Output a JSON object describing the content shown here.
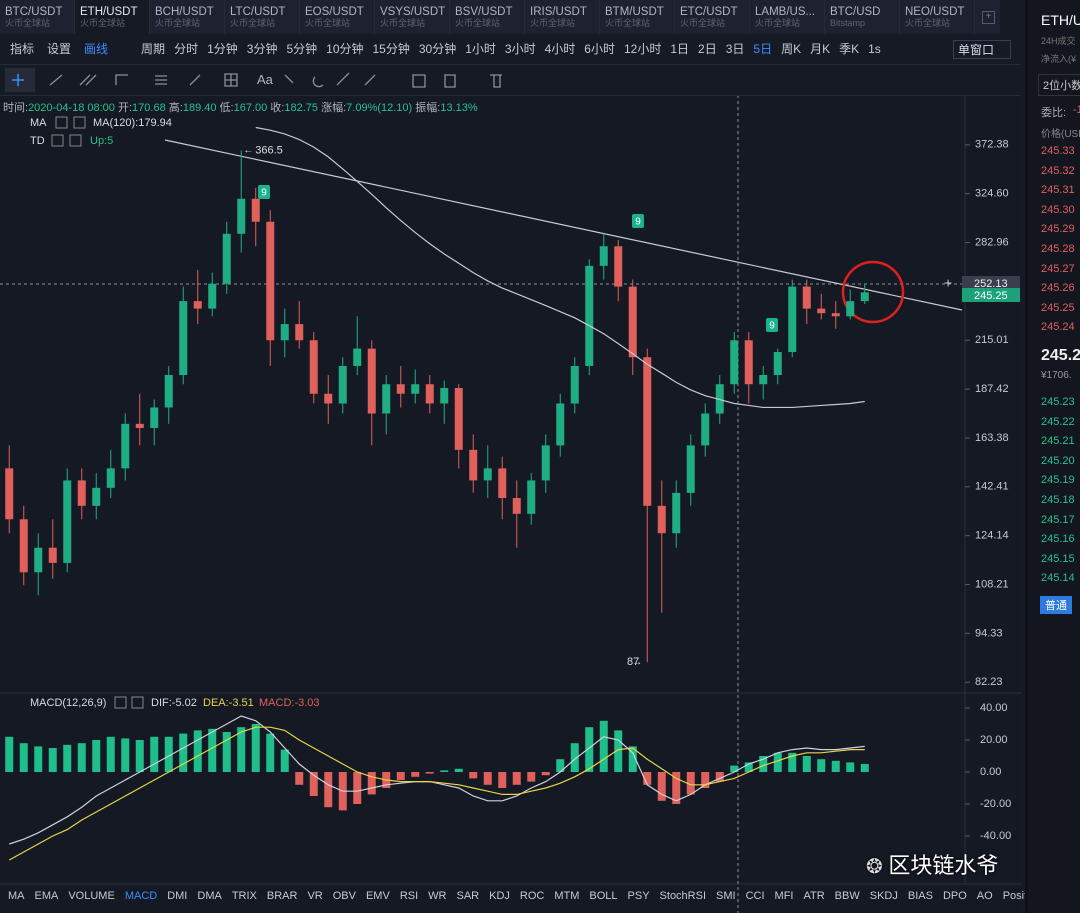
{
  "tabs": [
    {
      "symbol": "BTC/USDT",
      "exchange": "火币全球站"
    },
    {
      "symbol": "ETH/USDT",
      "exchange": "火币全球站"
    },
    {
      "symbol": "BCH/USDT",
      "exchange": "火币全球站"
    },
    {
      "symbol": "LTC/USDT",
      "exchange": "火币全球站"
    },
    {
      "symbol": "EOS/USDT",
      "exchange": "火币全球站"
    },
    {
      "symbol": "VSYS/USDT",
      "exchange": "火币全球站"
    },
    {
      "symbol": "BSV/USDT",
      "exchange": "火币全球站"
    },
    {
      "symbol": "IRIS/USDT",
      "exchange": "火币全球站"
    },
    {
      "symbol": "BTM/USDT",
      "exchange": "火币全球站"
    },
    {
      "symbol": "ETC/USDT",
      "exchange": "火币全球站"
    },
    {
      "symbol": "LAMB/US...",
      "exchange": "火币全球站"
    },
    {
      "symbol": "BTC/USD",
      "exchange": "Bitstamp"
    },
    {
      "symbol": "NEO/USDT",
      "exchange": "火币全球站"
    }
  ],
  "toolbar": {
    "left": [
      "指标",
      "设置",
      "画线"
    ],
    "periods": [
      "周期",
      "分时",
      "1分钟",
      "3分钟",
      "5分钟",
      "10分钟",
      "15分钟",
      "30分钟",
      "1小时",
      "3小时",
      "4小时",
      "6小时",
      "12小时",
      "1日",
      "2日",
      "3日",
      "5日",
      "周K",
      "月K",
      "季K",
      "1s"
    ],
    "window": "单窗口",
    "text_tool": "Aa"
  },
  "info_bar": [
    {
      "label": "时间:",
      "value": "2020-04-18 08:00"
    },
    {
      "label": "开:",
      "value": "170.68"
    },
    {
      "label": "高:",
      "value": "189.40"
    },
    {
      "label": "低:",
      "value": "167.00"
    },
    {
      "label": "收:",
      "value": "182.75"
    },
    {
      "label": "涨幅:",
      "value": "7.09%(12.10)"
    },
    {
      "label": "振幅:",
      "value": "13.13%"
    }
  ],
  "td_markers": [
    "9",
    "9",
    "9"
  ],
  "chart_data": [
    {
      "type": "candlestick",
      "log_scale": true,
      "ylim": [
        80,
        413
      ],
      "yticks": [
        372.38,
        {
          "value": 324.6,
          "label": "324.60"
        },
        282.96,
        215.01,
        187.42,
        163.38,
        142.41,
        124.14,
        108.21,
        94.33,
        82.23
      ],
      "crosshair_price": 252.13,
      "last_price": 245.25,
      "legend": {
        "ma": "MA",
        "ma120": "MA(120):179.94",
        "td": "TD",
        "td_value": "Up:5"
      },
      "up_color": "#1fae84",
      "down_color": "#e0605c",
      "open": [
        150,
        130,
        112,
        120,
        115,
        145,
        135,
        142,
        150,
        170,
        168,
        178,
        195,
        240,
        235,
        252,
        290,
        320,
        300,
        215,
        225,
        215,
        185,
        180,
        200,
        210,
        175,
        190,
        185,
        190,
        180,
        188,
        158,
        145,
        150,
        138,
        132,
        145,
        160,
        180,
        200,
        265,
        280,
        250,
        205,
        135,
        125,
        140,
        160,
        175,
        190,
        215,
        190,
        195,
        208,
        250,
        235,
        232,
        230,
        240
      ],
      "high": [
        160,
        135,
        125,
        130,
        150,
        150,
        148,
        158,
        175,
        185,
        182,
        200,
        250,
        262,
        260,
        300,
        366.5,
        330,
        310,
        235,
        240,
        220,
        195,
        205,
        230,
        215,
        195,
        200,
        198,
        195,
        192,
        190,
        165,
        160,
        155,
        145,
        148,
        165,
        185,
        205,
        270,
        290,
        285,
        255,
        210,
        145,
        145,
        165,
        180,
        195,
        220,
        220,
        200,
        210,
        255,
        255,
        245,
        240,
        248,
        252
      ],
      "low": [
        125,
        108,
        105,
        110,
        112,
        130,
        130,
        138,
        145,
        160,
        160,
        170,
        190,
        225,
        230,
        245,
        275,
        280,
        200,
        205,
        210,
        180,
        170,
        175,
        195,
        160,
        165,
        178,
        180,
        175,
        170,
        150,
        140,
        138,
        130,
        120,
        128,
        140,
        155,
        175,
        195,
        255,
        240,
        195,
        87,
        100,
        120,
        135,
        155,
        170,
        185,
        180,
        182,
        190,
        205,
        225,
        228,
        222,
        228,
        238
      ],
      "close": [
        130,
        112,
        120,
        115,
        145,
        135,
        142,
        150,
        170,
        168,
        178,
        195,
        240,
        235,
        252,
        290,
        320,
        300,
        215,
        225,
        215,
        185,
        180,
        200,
        210,
        175,
        190,
        185,
        190,
        180,
        188,
        158,
        145,
        150,
        138,
        132,
        145,
        160,
        180,
        200,
        265,
        280,
        250,
        205,
        135,
        125,
        140,
        160,
        175,
        190,
        215,
        190,
        195,
        208,
        250,
        235,
        232,
        230,
        240,
        246
      ],
      "ma120": {
        "color": "#c8c8d0",
        "values": [
          null,
          null,
          null,
          null,
          null,
          null,
          null,
          null,
          null,
          null,
          null,
          null,
          null,
          null,
          null,
          null,
          null,
          391,
          388,
          384,
          378,
          370,
          360,
          348,
          336,
          324,
          312,
          301,
          291,
          282,
          274,
          267,
          260,
          254,
          249,
          245,
          241,
          237,
          233,
          229,
          224,
          219,
          213,
          207,
          201,
          196,
          191,
          187,
          184,
          182,
          180,
          179,
          178,
          178,
          178,
          178.5,
          179,
          179.5,
          180,
          181
        ]
      }
    },
    {
      "type": "macd",
      "ylim": [
        -67.5,
        45
      ],
      "yticks": [
        {
          "value": 40,
          "label": "40.00"
        },
        {
          "value": 20,
          "label": "20.00"
        },
        {
          "value": 0,
          "label": "0.00"
        },
        {
          "value": -20,
          "label": "-20.00"
        },
        {
          "value": -40,
          "label": "-40.00"
        }
      ],
      "legend": {
        "name": "MACD(12,26,9)",
        "dif": "DIF:-5.02",
        "dea": "DEA:-3.51",
        "macd": "MACD:-3.03"
      },
      "histogram": [
        22,
        18,
        16,
        15,
        17,
        18,
        20,
        22,
        21,
        20,
        22,
        22,
        24,
        26,
        27,
        25,
        28,
        30,
        24,
        14,
        -8,
        -15,
        -22,
        -24,
        -20,
        -14,
        -10,
        -5,
        -3,
        -1,
        1,
        2,
        -4,
        -8,
        -10,
        -8,
        -6,
        -2,
        8,
        18,
        28,
        32,
        26,
        16,
        -8,
        -18,
        -20,
        -14,
        -10,
        -6,
        4,
        6,
        10,
        12,
        12,
        10,
        8,
        7,
        6,
        5
      ],
      "dif": {
        "color": "#d0d0d8",
        "values": [
          -45,
          -42,
          -38,
          -33,
          -28,
          -22,
          -15,
          -10,
          -5,
          0,
          5,
          10,
          15,
          20,
          25,
          30,
          35,
          32,
          25,
          15,
          5,
          -2,
          -8,
          -12,
          -12,
          -10,
          -8,
          -7,
          -6,
          -6,
          -8,
          -10,
          -15,
          -18,
          -18,
          -15,
          -10,
          -6,
          0,
          8,
          15,
          22,
          20,
          12,
          -8,
          -14,
          -18,
          -14,
          -8,
          -4,
          0,
          5,
          8,
          12,
          14,
          15,
          14,
          14,
          15,
          16
        ]
      },
      "dea": {
        "color": "#e6d44a",
        "values": [
          -55,
          -50,
          -45,
          -40,
          -36,
          -30,
          -25,
          -20,
          -15,
          -10,
          -5,
          0,
          5,
          10,
          15,
          20,
          25,
          28,
          28,
          26,
          20,
          15,
          10,
          5,
          0,
          -3,
          -5,
          -6,
          -6,
          -6,
          -7,
          -8,
          -10,
          -12,
          -14,
          -14,
          -12,
          -10,
          -7,
          -3,
          2,
          8,
          14,
          15,
          8,
          2,
          -4,
          -8,
          -8,
          -6,
          -4,
          0,
          4,
          7,
          10,
          12,
          12,
          13,
          14,
          14
        ]
      }
    }
  ],
  "indicators": [
    "MA",
    "EMA",
    "VOLUME",
    "MACD",
    "DMI",
    "DMA",
    "TRIX",
    "BRAR",
    "VR",
    "OBV",
    "EMV",
    "RSI",
    "WR",
    "SAR",
    "KDJ",
    "ROC",
    "MTM",
    "BOLL",
    "PSY",
    "StochRSI",
    "SMI",
    "CCI",
    "MFI",
    "ATR",
    "BBW",
    "SKDJ",
    "BIAS",
    "DPO",
    "AO",
    "Position"
  ],
  "order_book": {
    "symbol": "ETH/U",
    "volume_label": "24H成交",
    "inflow_label": "净流入(¥",
    "decimals": "2位小数",
    "ratio_label": "委比:",
    "ratio_value": "-1",
    "price_header": "价格(USD",
    "asks": [
      "245.33",
      "245.32",
      "245.31",
      "245.30",
      "245.29",
      "245.28",
      "245.27",
      "245.26",
      "245.25",
      "245.24"
    ],
    "last": "245.2",
    "last_cny": "¥1706.",
    "bids": [
      "245.23",
      "245.22",
      "245.21",
      "245.20",
      "245.19",
      "245.18",
      "245.17",
      "245.16",
      "245.15",
      "245.14"
    ],
    "mode": "普通"
  },
  "watermark": "区块链水爷"
}
